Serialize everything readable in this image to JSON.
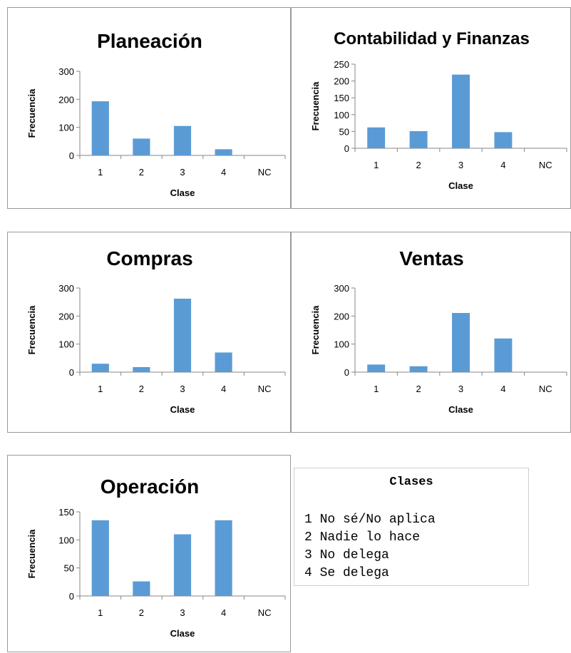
{
  "chart_data": [
    {
      "type": "bar",
      "title": "Planeación",
      "xlabel": "Clase",
      "ylabel": "Frecuencia",
      "categories": [
        "1",
        "2",
        "3",
        "4",
        "NC"
      ],
      "values": [
        193,
        60,
        105,
        22,
        0
      ],
      "ylim": [
        0,
        300
      ],
      "yticks": [
        "0",
        "100",
        "200",
        "300"
      ],
      "grid": false,
      "legend": "none"
    },
    {
      "type": "bar",
      "title": "Contabilidad y Finanzas",
      "xlabel": "Clase",
      "ylabel": "Frecuencia",
      "categories": [
        "1",
        "2",
        "3",
        "4",
        "NC"
      ],
      "values": [
        62,
        51,
        219,
        48,
        0
      ],
      "ylim": [
        0,
        250
      ],
      "yticks": [
        "0",
        "50",
        "100",
        "150",
        "200",
        "250"
      ],
      "grid": false,
      "legend": "none"
    },
    {
      "type": "bar",
      "title": "Compras",
      "xlabel": "Clase",
      "ylabel": "Frecuencia",
      "categories": [
        "1",
        "2",
        "3",
        "4",
        "NC"
      ],
      "values": [
        30,
        18,
        262,
        70,
        0
      ],
      "ylim": [
        0,
        300
      ],
      "yticks": [
        "0",
        "100",
        "200",
        "300"
      ],
      "grid": false,
      "legend": "none"
    },
    {
      "type": "bar",
      "title": "Ventas",
      "xlabel": "Clase",
      "ylabel": "Frecuencia",
      "categories": [
        "1",
        "2",
        "3",
        "4",
        "NC"
      ],
      "values": [
        27,
        21,
        211,
        120,
        0
      ],
      "ylim": [
        0,
        300
      ],
      "yticks": [
        "0",
        "100",
        "200",
        "300"
      ],
      "grid": false,
      "legend": "none"
    },
    {
      "type": "bar",
      "title": "Operación",
      "xlabel": "Clase",
      "ylabel": "Frecuencia",
      "categories": [
        "1",
        "2",
        "3",
        "4",
        "NC"
      ],
      "values": [
        135,
        26,
        110,
        135,
        0
      ],
      "ylim": [
        0,
        150
      ],
      "yticks": [
        "0",
        "50",
        "100",
        "150"
      ],
      "grid": false,
      "legend": "none"
    }
  ],
  "legend_box": {
    "title": "Clases",
    "items": [
      "1 No sé/No aplica",
      "2 Nadie lo hace",
      "3 No delega",
      "4 Se delega"
    ]
  },
  "colors": {
    "bar": "#5b9bd5",
    "axis": "#868686",
    "panel_border": "#9a9a9a"
  }
}
